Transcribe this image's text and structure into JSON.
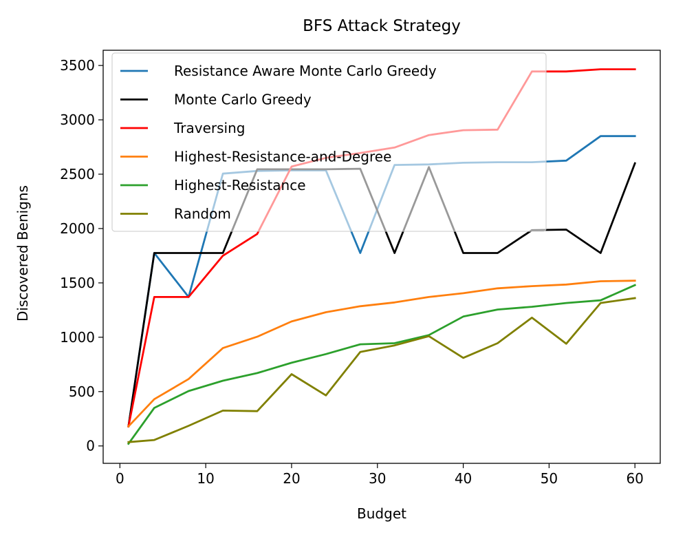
{
  "chart_data": {
    "type": "line",
    "title": "BFS Attack Strategy",
    "xlabel": "Budget",
    "ylabel": "Discovered Benigns",
    "xlim": [
      -1.95,
      62.95
    ],
    "ylim": [
      -160,
      3640
    ],
    "xticks": [
      0,
      10,
      20,
      30,
      40,
      50,
      60
    ],
    "yticks": [
      0,
      500,
      1000,
      1500,
      2000,
      2500,
      3000,
      3500
    ],
    "xtick_labels": [
      "0",
      "10",
      "20",
      "30",
      "40",
      "50",
      "60"
    ],
    "ytick_labels": [
      "0",
      "500",
      "1000",
      "1500",
      "2000",
      "2500",
      "3000",
      "3500"
    ],
    "grid": false,
    "legend_position": "upper-left",
    "x": [
      1,
      4,
      8,
      12,
      16,
      20,
      24,
      28,
      32,
      36,
      40,
      44,
      48,
      52,
      56,
      60
    ],
    "series": [
      {
        "name": "Resistance Aware Monte Carlo Greedy",
        "color": "#1f77b4",
        "values": [
          180,
          1775,
          1370,
          2505,
          2530,
          2535,
          2535,
          1775,
          2585,
          2590,
          2605,
          2610,
          2610,
          2625,
          2850,
          2850
        ]
      },
      {
        "name": "Monte Carlo Greedy",
        "color": "#000000",
        "values": [
          180,
          1775,
          1775,
          1775,
          2545,
          2545,
          2545,
          2550,
          1775,
          2565,
          1775,
          1775,
          1985,
          1990,
          1775,
          2600
        ]
      },
      {
        "name": "Traversing",
        "color": "#ff0000",
        "values": [
          180,
          1370,
          1370,
          1750,
          1950,
          2570,
          2650,
          2695,
          2745,
          2860,
          2905,
          2910,
          3445,
          3445,
          3465,
          3465
        ]
      },
      {
        "name": "Highest-Resistance-and-Degree",
        "color": "#ff7f0e",
        "values": [
          180,
          430,
          615,
          900,
          1005,
          1145,
          1230,
          1285,
          1320,
          1370,
          1405,
          1450,
          1470,
          1485,
          1515,
          1520
        ]
      },
      {
        "name": "Highest-Resistance",
        "color": "#2ca02c",
        "values": [
          20,
          350,
          505,
          600,
          670,
          765,
          845,
          935,
          945,
          1020,
          1190,
          1255,
          1280,
          1315,
          1340,
          1480
        ]
      },
      {
        "name": "Random",
        "color": "#808000",
        "values": [
          35,
          55,
          185,
          325,
          320,
          660,
          465,
          865,
          925,
          1010,
          810,
          945,
          1180,
          940,
          1315,
          1360
        ]
      }
    ]
  }
}
